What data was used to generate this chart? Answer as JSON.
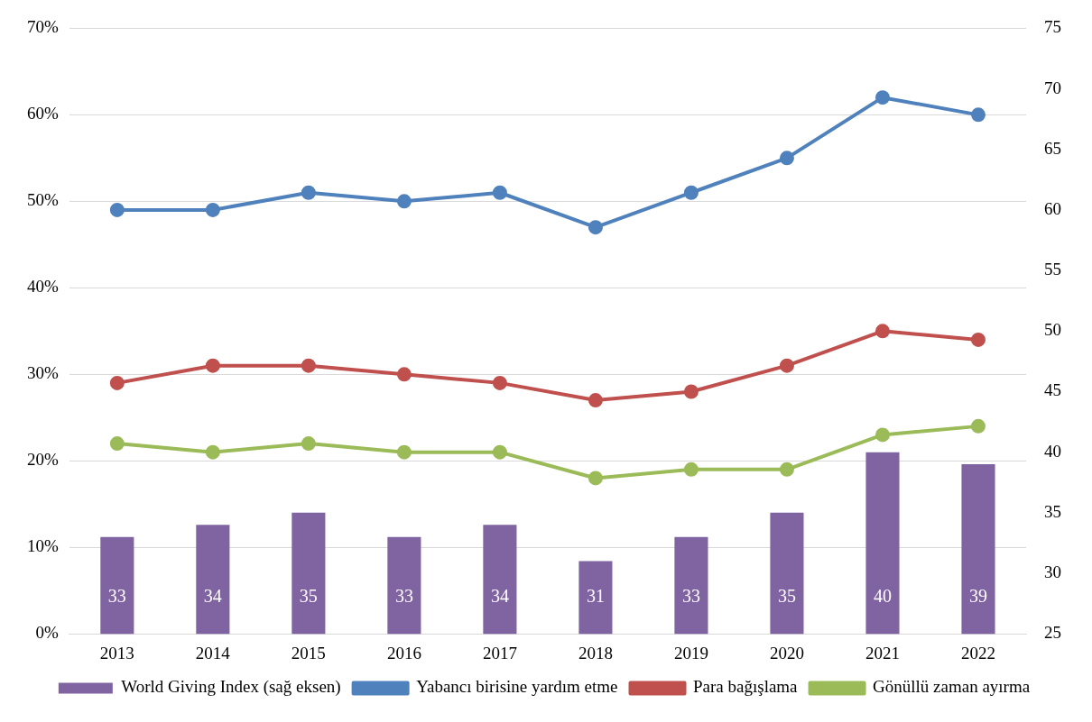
{
  "chart_data": {
    "type": "bar",
    "categories": [
      "2013",
      "2014",
      "2015",
      "2016",
      "2017",
      "2018",
      "2019",
      "2020",
      "2021",
      "2022"
    ],
    "series": [
      {
        "name": "World Giving Index (sağ eksen)",
        "axis": "y2",
        "color": "#8064a2",
        "values": [
          33,
          34,
          35,
          33,
          34,
          31,
          33,
          35,
          40,
          39
        ],
        "value_labels": [
          "33",
          "34",
          "35",
          "33",
          "34",
          "31",
          "33",
          "35",
          "40",
          "39"
        ]
      },
      {
        "name": "Yabancı birisine yardım etme",
        "type": "line",
        "color": "#4f81bd",
        "values": [
          49,
          49,
          51,
          50,
          51,
          47,
          51,
          55,
          62,
          60
        ]
      },
      {
        "name": "Para bağışlama",
        "type": "line",
        "color": "#c0504d",
        "values": [
          29,
          31,
          31,
          30,
          29,
          27,
          28,
          31,
          35,
          34
        ]
      },
      {
        "name": "Gönüllü zaman ayırma",
        "type": "line",
        "color": "#9bbb59",
        "values": [
          22,
          21,
          22,
          21,
          21,
          18,
          19,
          19,
          23,
          24
        ]
      }
    ],
    "ylim": [
      0,
      70
    ],
    "yticks": [
      {
        "value": 0,
        "label": "0%"
      },
      {
        "value": 10,
        "label": "10%"
      },
      {
        "value": 20,
        "label": "20%"
      },
      {
        "value": 30,
        "label": "30%"
      },
      {
        "value": 40,
        "label": "40%"
      },
      {
        "value": 50,
        "label": "50%"
      },
      {
        "value": 60,
        "label": "60%"
      },
      {
        "value": 70,
        "label": "70%"
      }
    ],
    "y2lim": [
      25,
      75
    ],
    "y2ticks": [
      25,
      30,
      35,
      40,
      45,
      50,
      55,
      60,
      65,
      70,
      75
    ],
    "grid": "y",
    "legend": "bottom",
    "marker": "circle"
  }
}
